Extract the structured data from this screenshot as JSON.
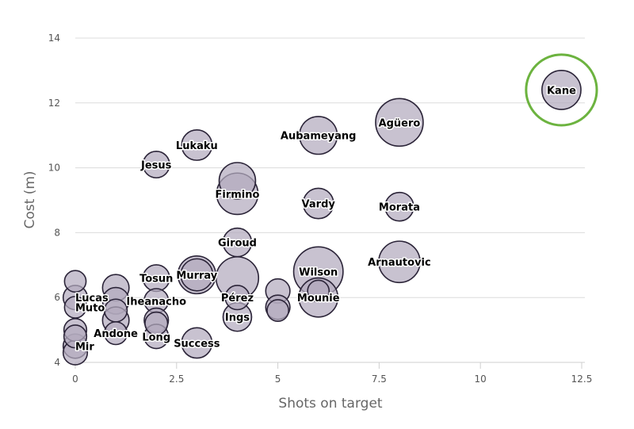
{
  "chart_data": {
    "type": "scatter",
    "xlabel": "Shots on target",
    "ylabel": "Cost (m)",
    "xlim": [
      0,
      12.5
    ],
    "ylim": [
      4,
      14
    ],
    "xticks": [
      0,
      2.5,
      5,
      7.5,
      10,
      12.5
    ],
    "yticks": [
      4,
      6,
      8,
      10,
      12,
      14
    ],
    "grid": true,
    "highlight": "Kane",
    "highlight_color": "#6cb33f",
    "bubble_color": "#b3aabe",
    "points": [
      {
        "label": "Kane",
        "x": 12,
        "y": 12.4,
        "size": 0.6
      },
      {
        "label": "Agüero",
        "x": 8,
        "y": 11.4,
        "size": 1.0
      },
      {
        "label": "Aubameyang",
        "x": 6,
        "y": 11.0,
        "size": 0.55
      },
      {
        "label": "Lukaku",
        "x": 3,
        "y": 10.7,
        "size": 0.3
      },
      {
        "label": "Jesus",
        "x": 2,
        "y": 10.1,
        "size": 0.2
      },
      {
        "label": "",
        "x": 4,
        "y": 9.6,
        "size": 0.5
      },
      {
        "label": "Firmino",
        "x": 4,
        "y": 9.2,
        "size": 0.7
      },
      {
        "label": "Vardy",
        "x": 6,
        "y": 8.9,
        "size": 0.3
      },
      {
        "label": "Morata",
        "x": 8,
        "y": 8.8,
        "size": 0.25
      },
      {
        "label": "Giroud",
        "x": 4,
        "y": 7.7,
        "size": 0.25
      },
      {
        "label": "Arnautovic",
        "x": 8,
        "y": 7.1,
        "size": 0.7
      },
      {
        "label": "Wilson",
        "x": 6,
        "y": 6.8,
        "size": 1.1
      },
      {
        "label": "Murray",
        "x": 3,
        "y": 6.7,
        "size": 0.55
      },
      {
        "label": "",
        "x": 3,
        "y": 6.7,
        "size": 0.35
      },
      {
        "label": "",
        "x": 4,
        "y": 6.6,
        "size": 0.75
      },
      {
        "label": "Tosun",
        "x": 2,
        "y": 6.6,
        "size": 0.2
      },
      {
        "label": "",
        "x": 0,
        "y": 6.5,
        "size": 0.1
      },
      {
        "label": "",
        "x": 1,
        "y": 6.3,
        "size": 0.2
      },
      {
        "label": "",
        "x": 5,
        "y": 6.2,
        "size": 0.15
      },
      {
        "label": "",
        "x": 6,
        "y": 6.2,
        "size": 0.1
      },
      {
        "label": "Lucas",
        "x": 0,
        "y": 6.0,
        "size": 0.15
      },
      {
        "label": "Pérez",
        "x": 4,
        "y": 6.0,
        "size": 0.15
      },
      {
        "label": "Mounie",
        "x": 6,
        "y": 6.0,
        "size": 0.6
      },
      {
        "label": "Iheanacho",
        "x": 2,
        "y": 5.9,
        "size": 0.15
      },
      {
        "label": "",
        "x": 1,
        "y": 5.9,
        "size": 0.2
      },
      {
        "label": "",
        "x": 5,
        "y": 5.7,
        "size": 0.15
      },
      {
        "label": "Muto",
        "x": 0,
        "y": 5.7,
        "size": 0.1
      },
      {
        "label": "",
        "x": 1,
        "y": 5.6,
        "size": 0.12
      },
      {
        "label": "",
        "x": 5,
        "y": 5.6,
        "size": 0.1
      },
      {
        "label": "Ings",
        "x": 4,
        "y": 5.4,
        "size": 0.25
      },
      {
        "label": "",
        "x": 1,
        "y": 5.3,
        "size": 0.2
      },
      {
        "label": "",
        "x": 2,
        "y": 5.3,
        "size": 0.15
      },
      {
        "label": "",
        "x": 2,
        "y": 5.2,
        "size": 0.12
      },
      {
        "label": "",
        "x": 0,
        "y": 5.0,
        "size": 0.12
      },
      {
        "label": "Andone",
        "x": 1,
        "y": 4.9,
        "size": 0.12
      },
      {
        "label": "",
        "x": 0,
        "y": 4.8,
        "size": 0.12
      },
      {
        "label": "Long",
        "x": 2,
        "y": 4.8,
        "size": 0.15
      },
      {
        "label": "Success",
        "x": 3,
        "y": 4.6,
        "size": 0.3
      },
      {
        "label": "Mir",
        "x": 0,
        "y": 4.5,
        "size": 0.15
      },
      {
        "label": "",
        "x": 0,
        "y": 4.3,
        "size": 0.15
      }
    ]
  }
}
